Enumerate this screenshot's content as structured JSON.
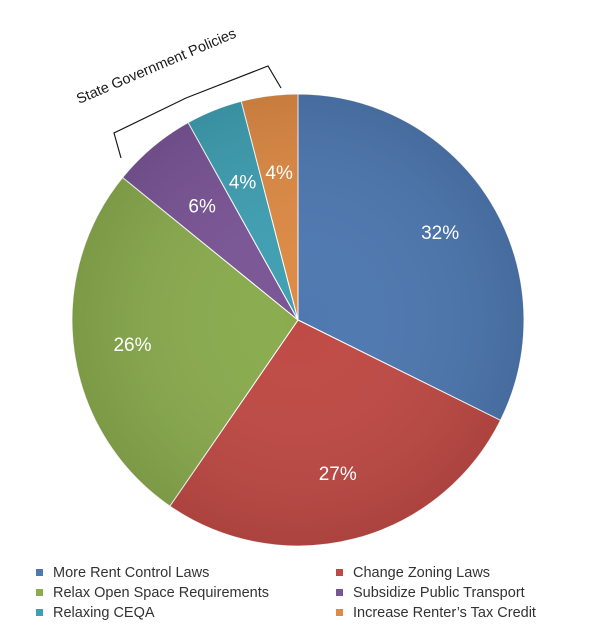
{
  "chart_data": {
    "type": "pie",
    "title": "",
    "slices": [
      {
        "label": "More Rent Control Laws",
        "value": 32,
        "display": "32%",
        "color": "#4e78b0"
      },
      {
        "label": "Change Zoning Laws",
        "value": 27,
        "display": "27%",
        "color": "#bf4a45"
      },
      {
        "label": "Relax Open Space Requirements",
        "value": 26,
        "display": "26%",
        "color": "#8aab4e"
      },
      {
        "label": "Subsidize Public Transport",
        "value": 6,
        "display": "6%",
        "color": "#7a5596"
      },
      {
        "label": "Relaxing CEQA",
        "value": 4,
        "display": "4%",
        "color": "#3f9fb2"
      },
      {
        "label": "Increase Renter’s Tax Credit",
        "value": 4,
        "display": "4%",
        "color": "#dd8a45"
      }
    ],
    "start": "12 o'clock, clockwise",
    "annotation": {
      "text": "State Government Policies",
      "spans": [
        "Subsidize Public Transport",
        "Relaxing CEQA",
        "Increase Renter’s Tax Credit"
      ]
    },
    "legend": {
      "position": "bottom",
      "items": [
        {
          "label": "More Rent Control Laws",
          "color": "#4e78b0"
        },
        {
          "label": "Change Zoning Laws",
          "color": "#bf4a45"
        },
        {
          "label": "Relax Open Space Requirements",
          "color": "#8aab4e"
        },
        {
          "label": "Subsidize Public Transport",
          "color": "#7a5596"
        },
        {
          "label": "Relaxing CEQA",
          "color": "#3f9fb2"
        },
        {
          "label": "Increase Renter’s Tax Credit",
          "color": "#dd8a45"
        }
      ]
    }
  }
}
